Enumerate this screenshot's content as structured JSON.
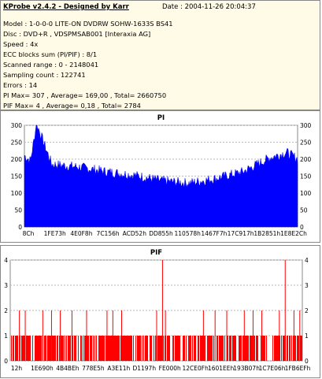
{
  "header": {
    "title": "KProbe v2.4.2 - Designed by Karr",
    "date": "Date : 2004-11-26 20:04:37",
    "lines": [
      "Model : 1-0-0-0 LITE-ON DVDRW SOHW-1633S BS41",
      "Disc : DVD+R , VDSPMSAB001 [Interaxia AG]",
      "Speed : 4x",
      "ECC blocks sum (PI/PIF) : 8/1",
      "Scanned range : 0 - 2148041",
      "Sampling count : 122741",
      "Errors : 14",
      "PI Max= 307 , Average= 169,00 , Total= 2660750",
      "PIF Max= 4 , Average= 0,18 , Total= 2784"
    ]
  },
  "chart_data": [
    {
      "type": "area",
      "title": "PI",
      "color": "#0000ff",
      "ylim": [
        0,
        300
      ],
      "yticks": [
        0,
        50,
        100,
        150,
        200,
        250,
        300
      ],
      "xtick_labels": [
        "8Ch",
        "1FE73h",
        "4E0F8h",
        "7C156h",
        "ACD52h",
        "DD855h",
        "110578h",
        "1467F7h",
        "17C917h",
        "1B2851h",
        "1E8E2Ch"
      ],
      "x_fraction": [
        0.0,
        0.022,
        0.045,
        0.1,
        0.2,
        0.3,
        0.4,
        0.5,
        0.6,
        0.7,
        0.8,
        0.9,
        0.96,
        1.0
      ],
      "y_values": [
        206,
        190,
        300,
        180,
        172,
        158,
        148,
        132,
        124,
        138,
        158,
        200,
        215,
        196
      ],
      "grid_y": true
    },
    {
      "type": "bar",
      "title": "PIF",
      "color": "#ff0000",
      "ylim": [
        0,
        4
      ],
      "yticks": [
        0,
        1,
        2,
        3,
        4
      ],
      "xtick_labels": [
        "12h",
        "1E690h",
        "4B4BEh",
        "778E5h",
        "A3E11h",
        "D1197h",
        "FE000h",
        "12CE0Fh",
        "1601EEh",
        "193B07h",
        "1C7E06h",
        "1FB6EFh"
      ],
      "base_level": 1,
      "spikes_2": [
        0.03,
        0.05,
        0.11,
        0.14,
        0.17,
        0.21,
        0.26,
        0.33,
        0.35,
        0.38,
        0.5,
        0.53,
        0.66,
        0.7,
        0.74,
        0.8,
        0.83,
        0.86,
        0.92,
        0.97,
        0.99
      ],
      "spikes_4": [
        0.52,
        0.94
      ],
      "grid_y": true
    }
  ]
}
